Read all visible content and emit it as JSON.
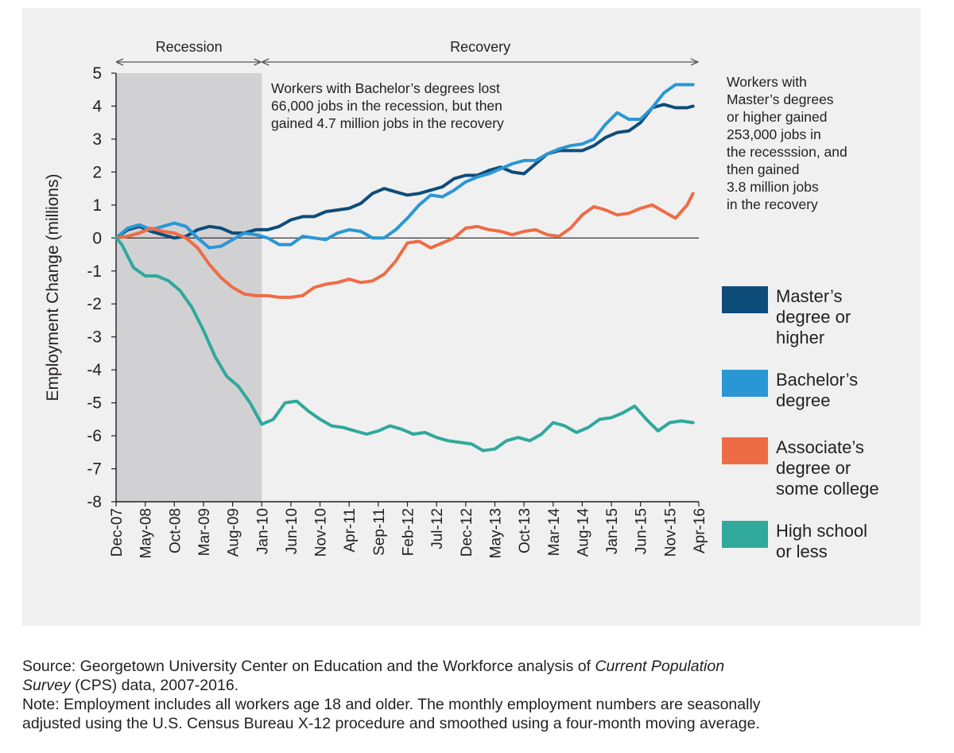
{
  "chart_data": {
    "type": "line",
    "title": "",
    "ylabel": "Employment Change (millions)",
    "xlabel": "",
    "ylim": [
      -8,
      5
    ],
    "yticks": [
      5,
      4,
      3,
      2,
      1,
      0,
      -1,
      -2,
      -3,
      -4,
      -5,
      -6,
      -7,
      -8
    ],
    "xlim": [
      "2007-12",
      "2016-04"
    ],
    "xticks": [
      "Dec-07",
      "May-08",
      "Oct-08",
      "Mar-09",
      "Aug-09",
      "Jan-10",
      "Jun-10",
      "Nov-10",
      "Apr-11",
      "Sep-11",
      "Feb-12",
      "Jul-12",
      "Dec-12",
      "May-13",
      "Oct-13",
      "Mar-14",
      "Aug-14",
      "Jan-15",
      "Jun-15",
      "Nov-15",
      "Apr-16"
    ],
    "grid": false,
    "zero_line": true,
    "legend_position": "right",
    "periods": [
      {
        "label": "Recession",
        "start": "2007-12",
        "end": "2010-01",
        "shaded": true
      },
      {
        "label": "Recovery",
        "start": "2010-01",
        "end": "2016-04",
        "shaded": false
      }
    ],
    "annotations": [
      "Workers with Bachelor’s degrees lost\n66,000 jobs in the recession, but then\ngained 4.7 million jobs in the recovery",
      "Workers with\nMaster’s degrees\nor higher gained\n253,000 jobs in\nthe recesssion, and\nthen gained\n3.8 million jobs\nin the recovery"
    ],
    "series": [
      {
        "name": "Master’s degree or higher",
        "color": "#0e4c7a",
        "points": [
          [
            "2007-12",
            0
          ],
          [
            "2008-02",
            0.25
          ],
          [
            "2008-04",
            0.35
          ],
          [
            "2008-06",
            0.2
          ],
          [
            "2008-08",
            0.1
          ],
          [
            "2008-10",
            0.0
          ],
          [
            "2008-12",
            0.05
          ],
          [
            "2009-02",
            0.25
          ],
          [
            "2009-04",
            0.35
          ],
          [
            "2009-06",
            0.3
          ],
          [
            "2009-08",
            0.15
          ],
          [
            "2009-10",
            0.15
          ],
          [
            "2009-12",
            0.25
          ],
          [
            "2010-02",
            0.25
          ],
          [
            "2010-04",
            0.35
          ],
          [
            "2010-06",
            0.55
          ],
          [
            "2010-08",
            0.65
          ],
          [
            "2010-10",
            0.65
          ],
          [
            "2010-12",
            0.8
          ],
          [
            "2011-02",
            0.85
          ],
          [
            "2011-04",
            0.9
          ],
          [
            "2011-06",
            1.05
          ],
          [
            "2011-08",
            1.35
          ],
          [
            "2011-10",
            1.5
          ],
          [
            "2011-12",
            1.4
          ],
          [
            "2012-02",
            1.3
          ],
          [
            "2012-04",
            1.35
          ],
          [
            "2012-06",
            1.45
          ],
          [
            "2012-08",
            1.55
          ],
          [
            "2012-10",
            1.8
          ],
          [
            "2012-12",
            1.9
          ],
          [
            "2013-02",
            1.9
          ],
          [
            "2013-04",
            2.05
          ],
          [
            "2013-06",
            2.15
          ],
          [
            "2013-08",
            2.0
          ],
          [
            "2013-10",
            1.95
          ],
          [
            "2013-12",
            2.25
          ],
          [
            "2014-02",
            2.55
          ],
          [
            "2014-04",
            2.65
          ],
          [
            "2014-06",
            2.65
          ],
          [
            "2014-08",
            2.65
          ],
          [
            "2014-10",
            2.8
          ],
          [
            "2014-12",
            3.05
          ],
          [
            "2015-02",
            3.2
          ],
          [
            "2015-04",
            3.25
          ],
          [
            "2015-06",
            3.5
          ],
          [
            "2015-08",
            3.95
          ],
          [
            "2015-10",
            4.05
          ],
          [
            "2015-12",
            3.95
          ],
          [
            "2016-02",
            3.95
          ],
          [
            "2016-03",
            4.0
          ]
        ]
      },
      {
        "name": "Bachelor’s degree",
        "color": "#2a97d4",
        "points": [
          [
            "2007-12",
            0
          ],
          [
            "2008-02",
            0.3
          ],
          [
            "2008-04",
            0.4
          ],
          [
            "2008-06",
            0.25
          ],
          [
            "2008-08",
            0.35
          ],
          [
            "2008-10",
            0.45
          ],
          [
            "2008-12",
            0.35
          ],
          [
            "2009-02",
            0.0
          ],
          [
            "2009-04",
            -0.3
          ],
          [
            "2009-06",
            -0.25
          ],
          [
            "2009-08",
            -0.05
          ],
          [
            "2009-10",
            0.15
          ],
          [
            "2009-12",
            0.1
          ],
          [
            "2010-02",
            0.0
          ],
          [
            "2010-04",
            -0.2
          ],
          [
            "2010-06",
            -0.2
          ],
          [
            "2010-08",
            0.05
          ],
          [
            "2010-10",
            0.0
          ],
          [
            "2010-12",
            -0.05
          ],
          [
            "2011-02",
            0.15
          ],
          [
            "2011-04",
            0.25
          ],
          [
            "2011-06",
            0.2
          ],
          [
            "2011-08",
            0.0
          ],
          [
            "2011-10",
            0.0
          ],
          [
            "2011-12",
            0.25
          ],
          [
            "2012-02",
            0.6
          ],
          [
            "2012-04",
            1.0
          ],
          [
            "2012-06",
            1.3
          ],
          [
            "2012-08",
            1.25
          ],
          [
            "2012-10",
            1.45
          ],
          [
            "2012-12",
            1.7
          ],
          [
            "2013-02",
            1.85
          ],
          [
            "2013-04",
            1.95
          ],
          [
            "2013-06",
            2.1
          ],
          [
            "2013-08",
            2.25
          ],
          [
            "2013-10",
            2.35
          ],
          [
            "2013-12",
            2.35
          ],
          [
            "2014-02",
            2.55
          ],
          [
            "2014-04",
            2.7
          ],
          [
            "2014-06",
            2.8
          ],
          [
            "2014-08",
            2.85
          ],
          [
            "2014-10",
            3.0
          ],
          [
            "2014-12",
            3.45
          ],
          [
            "2015-02",
            3.8
          ],
          [
            "2015-04",
            3.6
          ],
          [
            "2015-06",
            3.6
          ],
          [
            "2015-08",
            3.95
          ],
          [
            "2015-10",
            4.4
          ],
          [
            "2015-12",
            4.65
          ],
          [
            "2016-02",
            4.65
          ],
          [
            "2016-03",
            4.65
          ]
        ]
      },
      {
        "name": "Associate’s degree or some college",
        "color": "#ee6c45",
        "points": [
          [
            "2007-12",
            0
          ],
          [
            "2008-02",
            0.05
          ],
          [
            "2008-04",
            0.15
          ],
          [
            "2008-06",
            0.3
          ],
          [
            "2008-08",
            0.2
          ],
          [
            "2008-10",
            0.15
          ],
          [
            "2008-12",
            0.0
          ],
          [
            "2009-02",
            -0.3
          ],
          [
            "2009-04",
            -0.8
          ],
          [
            "2009-06",
            -1.2
          ],
          [
            "2009-08",
            -1.5
          ],
          [
            "2009-10",
            -1.7
          ],
          [
            "2009-12",
            -1.75
          ],
          [
            "2010-02",
            -1.75
          ],
          [
            "2010-04",
            -1.8
          ],
          [
            "2010-06",
            -1.8
          ],
          [
            "2010-08",
            -1.75
          ],
          [
            "2010-10",
            -1.5
          ],
          [
            "2010-12",
            -1.4
          ],
          [
            "2011-02",
            -1.35
          ],
          [
            "2011-04",
            -1.25
          ],
          [
            "2011-06",
            -1.35
          ],
          [
            "2011-08",
            -1.3
          ],
          [
            "2011-10",
            -1.1
          ],
          [
            "2011-12",
            -0.7
          ],
          [
            "2012-02",
            -0.15
          ],
          [
            "2012-04",
            -0.1
          ],
          [
            "2012-06",
            -0.3
          ],
          [
            "2012-08",
            -0.15
          ],
          [
            "2012-10",
            0.0
          ],
          [
            "2012-12",
            0.3
          ],
          [
            "2013-02",
            0.35
          ],
          [
            "2013-04",
            0.25
          ],
          [
            "2013-06",
            0.2
          ],
          [
            "2013-08",
            0.1
          ],
          [
            "2013-10",
            0.2
          ],
          [
            "2013-12",
            0.25
          ],
          [
            "2014-02",
            0.1
          ],
          [
            "2014-04",
            0.05
          ],
          [
            "2014-06",
            0.3
          ],
          [
            "2014-08",
            0.7
          ],
          [
            "2014-10",
            0.95
          ],
          [
            "2014-12",
            0.85
          ],
          [
            "2015-02",
            0.7
          ],
          [
            "2015-04",
            0.75
          ],
          [
            "2015-06",
            0.9
          ],
          [
            "2015-08",
            1.0
          ],
          [
            "2015-10",
            0.8
          ],
          [
            "2015-12",
            0.6
          ],
          [
            "2016-02",
            1.0
          ],
          [
            "2016-03",
            1.35
          ]
        ]
      },
      {
        "name": "High school or less",
        "color": "#30a89c",
        "points": [
          [
            "2007-12",
            0
          ],
          [
            "2008-01",
            -0.2
          ],
          [
            "2008-03",
            -0.9
          ],
          [
            "2008-05",
            -1.15
          ],
          [
            "2008-07",
            -1.15
          ],
          [
            "2008-09",
            -1.3
          ],
          [
            "2008-11",
            -1.6
          ],
          [
            "2009-01",
            -2.1
          ],
          [
            "2009-03",
            -2.8
          ],
          [
            "2009-05",
            -3.6
          ],
          [
            "2009-07",
            -4.2
          ],
          [
            "2009-09",
            -4.5
          ],
          [
            "2009-11",
            -5.0
          ],
          [
            "2010-01",
            -5.65
          ],
          [
            "2010-03",
            -5.5
          ],
          [
            "2010-05",
            -5.0
          ],
          [
            "2010-07",
            -4.95
          ],
          [
            "2010-09",
            -5.25
          ],
          [
            "2010-11",
            -5.5
          ],
          [
            "2011-01",
            -5.7
          ],
          [
            "2011-03",
            -5.75
          ],
          [
            "2011-05",
            -5.85
          ],
          [
            "2011-07",
            -5.95
          ],
          [
            "2011-09",
            -5.85
          ],
          [
            "2011-11",
            -5.7
          ],
          [
            "2012-01",
            -5.8
          ],
          [
            "2012-03",
            -5.95
          ],
          [
            "2012-05",
            -5.9
          ],
          [
            "2012-07",
            -6.05
          ],
          [
            "2012-09",
            -6.15
          ],
          [
            "2012-11",
            -6.2
          ],
          [
            "2013-01",
            -6.25
          ],
          [
            "2013-03",
            -6.45
          ],
          [
            "2013-05",
            -6.4
          ],
          [
            "2013-07",
            -6.15
          ],
          [
            "2013-09",
            -6.05
          ],
          [
            "2013-11",
            -6.15
          ],
          [
            "2014-01",
            -5.95
          ],
          [
            "2014-03",
            -5.6
          ],
          [
            "2014-05",
            -5.7
          ],
          [
            "2014-07",
            -5.9
          ],
          [
            "2014-09",
            -5.75
          ],
          [
            "2014-11",
            -5.5
          ],
          [
            "2015-01",
            -5.45
          ],
          [
            "2015-03",
            -5.3
          ],
          [
            "2015-05",
            -5.1
          ],
          [
            "2015-07",
            -5.5
          ],
          [
            "2015-09",
            -5.85
          ],
          [
            "2015-11",
            -5.6
          ],
          [
            "2016-01",
            -5.55
          ],
          [
            "2016-03",
            -5.6
          ]
        ]
      }
    ]
  },
  "footnote": {
    "source_prefix": "Source: Georgetown University Center on Education and the Workforce analysis of ",
    "source_italic_1": "Current Population",
    "source_italic_2": "Survey",
    "source_suffix": " (CPS) data, 2007-2016.",
    "note_line_1": "Note: Employment includes all workers age 18 and older. The monthly employment numbers are seasonally",
    "note_line_2": "adjusted using the U.S. Census Bureau X-12 procedure and smoothed using a four-month moving average."
  }
}
